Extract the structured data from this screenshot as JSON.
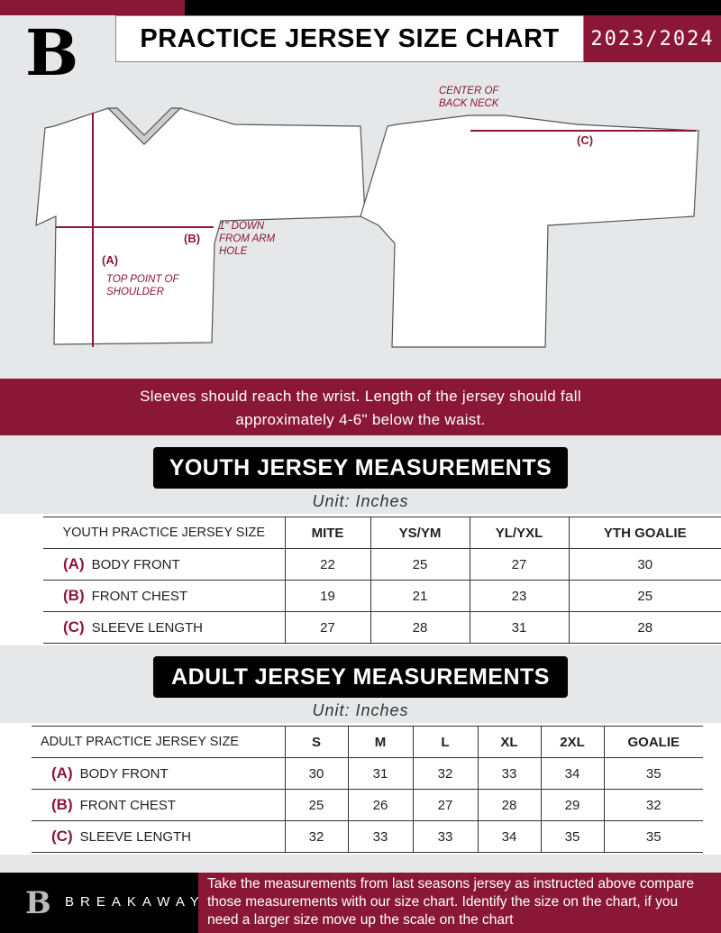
{
  "header": {
    "title": "PRACTICE JERSEY SIZE CHART",
    "season": "2023/2024",
    "logo_letter": "B"
  },
  "diagram": {
    "notes": {
      "center_back_neck": "CENTER OF BACK NECK",
      "one_inch_down": "1\" DOWN FROM ARM HOLE",
      "top_point": "TOP POINT OF SHOULDER"
    },
    "labels": {
      "a": "(A)",
      "b": "(B)",
      "c": "(C)"
    },
    "accent": "#8a1736"
  },
  "instructions": "Sleeves should reach the wrist. Length of the jersey should fall approximately 4-6\" below the waist.",
  "youth": {
    "heading": "YOUTH JERSEY MEASUREMENTS",
    "unit": "Unit: Inches",
    "columns": [
      "YOUTH PRACTICE JERSEY SIZE",
      "MITE",
      "YS/YM",
      "YL/YXL",
      "YTH GOALIE"
    ],
    "rows": [
      {
        "code": "(A)",
        "label": "BODY FRONT",
        "values": [
          "22",
          "25",
          "27",
          "30"
        ]
      },
      {
        "code": "(B)",
        "label": "FRONT CHEST",
        "values": [
          "19",
          "21",
          "23",
          "25"
        ]
      },
      {
        "code": "(C)",
        "label": "SLEEVE LENGTH",
        "values": [
          "27",
          "28",
          "31",
          "28"
        ]
      }
    ]
  },
  "adult": {
    "heading": "ADULT JERSEY MEASUREMENTS",
    "unit": "Unit: Inches",
    "columns": [
      "ADULT PRACTICE JERSEY SIZE",
      "S",
      "M",
      "L",
      "XL",
      "2XL",
      "GOALIE"
    ],
    "rows": [
      {
        "code": "(A)",
        "label": "BODY FRONT",
        "values": [
          "30",
          "31",
          "32",
          "33",
          "34",
          "35"
        ]
      },
      {
        "code": "(B)",
        "label": "FRONT CHEST",
        "values": [
          "25",
          "26",
          "27",
          "28",
          "29",
          "32"
        ]
      },
      {
        "code": "(C)",
        "label": "SLEEVE LENGTH",
        "values": [
          "32",
          "33",
          "33",
          "34",
          "35",
          "35"
        ]
      }
    ]
  },
  "footer": {
    "brand": "BREAKAWAY",
    "text": "Take the measurements from last seasons jersey as instructed above compare those measurements  with our size chart. Identify the size on the chart, if you need a larger size move up the scale on the chart"
  }
}
